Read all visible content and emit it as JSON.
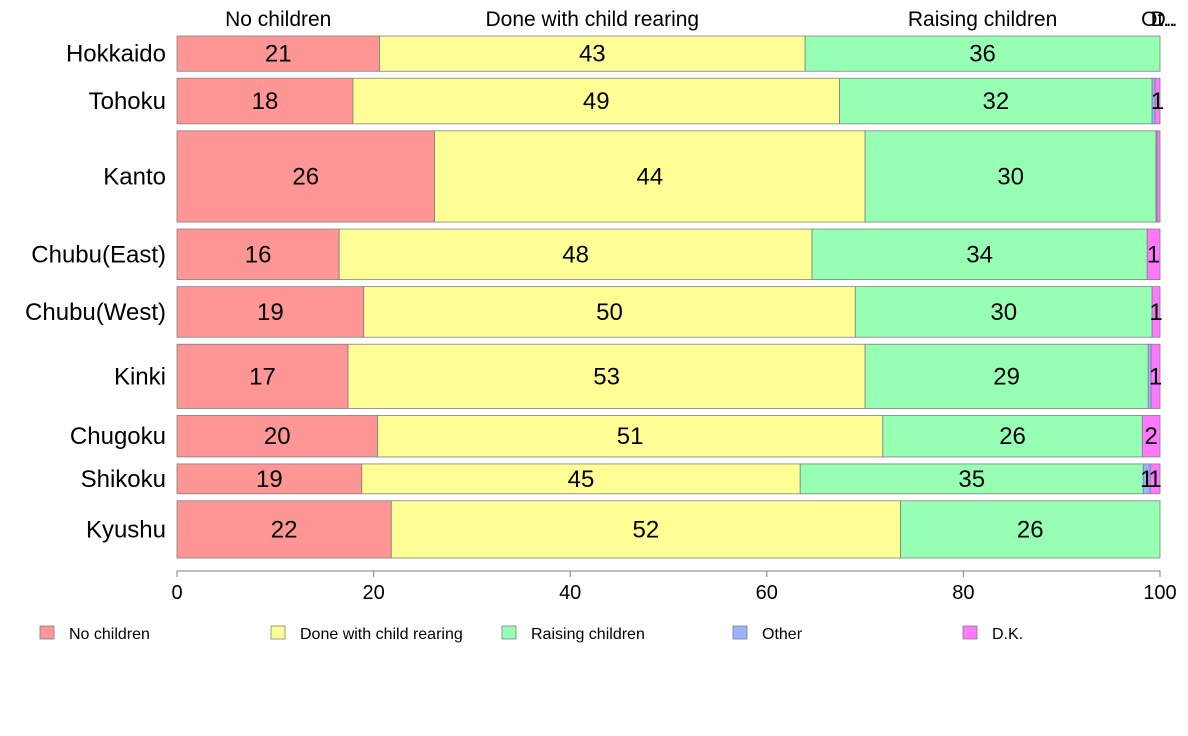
{
  "chart_data": {
    "type": "bar",
    "orientation": "horizontal",
    "stacked": true,
    "categories": [
      "Hokkaido",
      "Tohoku",
      "Kanto",
      "Chubu(East)",
      "Chubu(West)",
      "Kinki",
      "Chugoku",
      "Shikoku",
      "Kyushu"
    ],
    "series": [
      {
        "name": "No children",
        "color": "#ff9696",
        "values": [
          20.6,
          17.9,
          26.2,
          16.5,
          19.0,
          17.4,
          20.4,
          18.8,
          21.8
        ]
      },
      {
        "name": "Done with child rearing",
        "color": "#ffff96",
        "values": [
          43.3,
          49.5,
          43.8,
          48.1,
          50.0,
          52.6,
          51.4,
          44.6,
          51.8
        ]
      },
      {
        "name": "Raising children",
        "color": "#96ffb4",
        "values": [
          36.1,
          31.8,
          29.6,
          34.1,
          30.2,
          28.8,
          26.4,
          34.9,
          26.4
        ]
      },
      {
        "name": "Other",
        "color": "#96b4ff",
        "values": [
          0,
          0.3,
          0.1,
          0,
          0,
          0.3,
          0,
          0.7,
          0
        ]
      },
      {
        "name": "D.K.",
        "color": "#ff78ff",
        "values": [
          0,
          0.5,
          0.3,
          1.3,
          0.8,
          0.9,
          1.8,
          1.0,
          0
        ]
      }
    ],
    "bar_weights": [
      0.85,
      1.1,
      2.2,
      1.22,
      1.22,
      1.55,
      1.0,
      0.72,
      1.38
    ],
    "data_labels": [
      [
        "21",
        "43",
        "36",
        "",
        ""
      ],
      [
        "18",
        "49",
        "32",
        "",
        "1"
      ],
      [
        "26",
        "44",
        "30",
        "",
        ""
      ],
      [
        "16",
        "48",
        "34",
        "",
        "1"
      ],
      [
        "19",
        "50",
        "30",
        "",
        "1"
      ],
      [
        "17",
        "53",
        "29",
        "",
        "1"
      ],
      [
        "20",
        "51",
        "26",
        "",
        "2"
      ],
      [
        "19",
        "45",
        "35",
        "1",
        "1"
      ],
      [
        "22",
        "52",
        "26",
        "",
        ""
      ]
    ],
    "top_labels": [
      "No children",
      "Done with child rearing",
      "Raising children",
      "Ot..",
      "D.."
    ],
    "x_ticks": [
      "0",
      "20",
      "40",
      "60",
      "80",
      "100"
    ],
    "xlim": [
      0,
      100
    ],
    "legend": [
      "No children",
      "Done with child rearing",
      "Raising children",
      "Other",
      "D.K."
    ],
    "legend_position": "bottom",
    "grid": false
  }
}
